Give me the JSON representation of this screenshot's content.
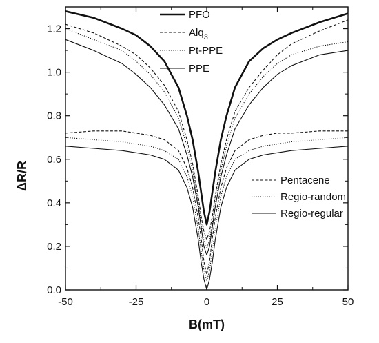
{
  "chart_data": {
    "type": "line",
    "title": "",
    "xlabel": "B(mT)",
    "ylabel": "ΔR/R",
    "xlim": [
      -50,
      50
    ],
    "ylim": [
      0.0,
      1.3
    ],
    "xticks": [
      -50,
      -25,
      0,
      25,
      50
    ],
    "yticks": [
      0.0,
      0.2,
      0.4,
      0.6,
      0.8,
      1.0,
      1.2
    ],
    "x": [
      -50,
      -40,
      -30,
      -25,
      -20,
      -15,
      -10,
      -7,
      -5,
      -3,
      -2,
      -1,
      0,
      1,
      2,
      3,
      5,
      7,
      10,
      15,
      20,
      25,
      30,
      40,
      50
    ],
    "grid": false,
    "legends": [
      {
        "placement": "top-left",
        "entries": [
          0,
          1,
          2,
          3
        ]
      },
      {
        "placement": "middle-right",
        "entries": [
          4,
          5,
          6
        ]
      }
    ],
    "series": [
      {
        "name": "PFO",
        "style": "solid-bold",
        "values": [
          1.28,
          1.25,
          1.2,
          1.17,
          1.12,
          1.05,
          0.93,
          0.8,
          0.69,
          0.54,
          0.45,
          0.36,
          0.3,
          0.36,
          0.45,
          0.54,
          0.69,
          0.8,
          0.93,
          1.05,
          1.11,
          1.15,
          1.18,
          1.23,
          1.27
        ]
      },
      {
        "name": "Alq3",
        "name_main": "Alq",
        "name_sub": "3",
        "style": "dashed",
        "values": [
          1.22,
          1.18,
          1.12,
          1.08,
          1.02,
          0.94,
          0.82,
          0.69,
          0.58,
          0.43,
          0.34,
          0.27,
          0.23,
          0.27,
          0.34,
          0.43,
          0.58,
          0.69,
          0.82,
          0.93,
          1.01,
          1.08,
          1.13,
          1.19,
          1.24
        ]
      },
      {
        "name": "Pt-PPE",
        "style": "dotted",
        "values": [
          1.2,
          1.15,
          1.1,
          1.05,
          0.99,
          0.91,
          0.79,
          0.66,
          0.55,
          0.4,
          0.31,
          0.23,
          0.19,
          0.23,
          0.31,
          0.4,
          0.55,
          0.66,
          0.79,
          0.9,
          0.98,
          1.04,
          1.08,
          1.12,
          1.14
        ]
      },
      {
        "name": "PPE",
        "style": "solid",
        "values": [
          1.15,
          1.1,
          1.04,
          0.99,
          0.93,
          0.85,
          0.74,
          0.62,
          0.52,
          0.38,
          0.29,
          0.2,
          0.16,
          0.2,
          0.29,
          0.38,
          0.52,
          0.62,
          0.74,
          0.85,
          0.93,
          0.99,
          1.03,
          1.08,
          1.1
        ]
      },
      {
        "name": "Pentacene",
        "style": "dashed",
        "values": [
          0.72,
          0.73,
          0.73,
          0.72,
          0.71,
          0.69,
          0.64,
          0.56,
          0.47,
          0.33,
          0.24,
          0.13,
          0.07,
          0.13,
          0.24,
          0.33,
          0.47,
          0.56,
          0.64,
          0.69,
          0.71,
          0.72,
          0.72,
          0.73,
          0.73
        ]
      },
      {
        "name": "Regio-random",
        "style": "dotted",
        "values": [
          0.7,
          0.69,
          0.68,
          0.67,
          0.66,
          0.64,
          0.6,
          0.52,
          0.43,
          0.28,
          0.18,
          0.09,
          0.04,
          0.09,
          0.18,
          0.28,
          0.43,
          0.52,
          0.6,
          0.64,
          0.66,
          0.67,
          0.68,
          0.69,
          0.7
        ]
      },
      {
        "name": "Regio-regular",
        "style": "solid",
        "values": [
          0.66,
          0.65,
          0.64,
          0.63,
          0.62,
          0.6,
          0.55,
          0.47,
          0.38,
          0.23,
          0.13,
          0.05,
          0.0,
          0.05,
          0.13,
          0.23,
          0.38,
          0.47,
          0.55,
          0.6,
          0.62,
          0.63,
          0.64,
          0.65,
          0.66
        ]
      }
    ]
  }
}
